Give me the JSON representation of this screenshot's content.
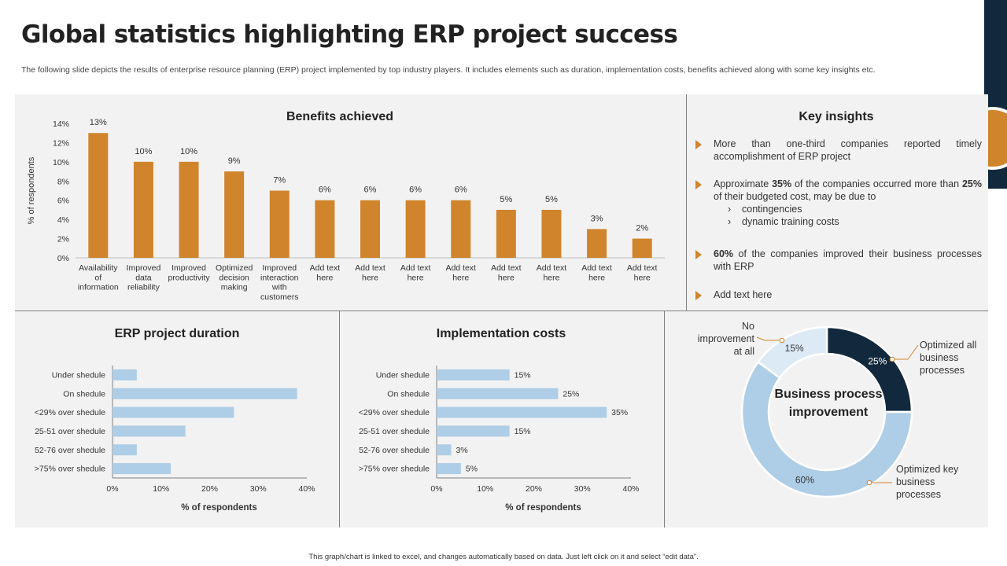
{
  "page": {
    "title": "Global statistics highlighting ERP project success",
    "subtitle": "The following slide depicts the results of enterprise resource planning (ERP) project implemented by top industry players. It includes elements such as duration, implementation costs, benefits achieved along with some key insights etc.",
    "footer": "This graph/chart is linked to excel, and changes automatically based on data. Just left click on it and select “edit data”."
  },
  "colors": {
    "orange": "#d0842b",
    "light_blue": "#aecde6",
    "navy": "#12293d",
    "pale_blue": "#dceaf6",
    "panel_bg": "#f2f2f2"
  },
  "insights": {
    "title": "Key insights",
    "items": [
      {
        "text": "More than one-third companies reported timely accomplishment of ERP project"
      },
      {
        "pre": "Approximate ",
        "b1": "35%",
        "mid": " of the companies occurred more than ",
        "b2": "25%",
        "post": " of their budgeted cost, may be due to",
        "subs": [
          "contingencies",
          "dynamic training costs"
        ],
        "bullet": "›"
      },
      {
        "b1": "60%",
        "post": " of the companies improved their business processes with ERP"
      },
      {
        "text": "Add text here"
      }
    ]
  },
  "chart_data": [
    {
      "type": "bar",
      "title": "Benefits achieved",
      "ylabel": "% of respondents",
      "ylim": [
        0,
        14
      ],
      "yticks": [
        "0%",
        "2%",
        "4%",
        "6%",
        "8%",
        "10%",
        "12%",
        "14%"
      ],
      "categories": [
        [
          "Availability",
          "of",
          "information"
        ],
        [
          "Improved",
          "data",
          "reliability"
        ],
        [
          "Improved",
          "productivity"
        ],
        [
          "Optimized",
          "decision",
          "making"
        ],
        [
          "Improved",
          "interaction",
          "with",
          "customers"
        ],
        [
          "Add text",
          "here"
        ],
        [
          "Add text",
          "here"
        ],
        [
          "Add text",
          "here"
        ],
        [
          "Add text",
          "here"
        ],
        [
          "Add text",
          "here"
        ],
        [
          "Add text",
          "here"
        ],
        [
          "Add text",
          "here"
        ],
        [
          "Add text",
          "here"
        ]
      ],
      "values": [
        13,
        10,
        10,
        9,
        7,
        6,
        6,
        6,
        6,
        5,
        5,
        3,
        2
      ],
      "labels": [
        "13%",
        "10%",
        "10%",
        "9%",
        "7%",
        "6%",
        "6%",
        "6%",
        "6%",
        "5%",
        "5%",
        "3%",
        "2%"
      ]
    },
    {
      "type": "bar",
      "orientation": "horizontal",
      "title": "ERP project duration",
      "xlabel": "% of respondents",
      "xlim": [
        0,
        40
      ],
      "xticks": [
        "0%",
        "10%",
        "20%",
        "30%",
        "40%"
      ],
      "categories": [
        "Under shedule",
        "On shedule",
        "<29% over shedule",
        "25-51 over shedule",
        "52-76 over shedule",
        ">75% over shedule"
      ],
      "values": [
        5,
        38,
        25,
        15,
        5,
        12
      ]
    },
    {
      "type": "bar",
      "orientation": "horizontal",
      "title": "Implementation costs",
      "xlabel": "% of respondents",
      "xlim": [
        0,
        40
      ],
      "xticks": [
        "0%",
        "10%",
        "20%",
        "30%",
        "40%"
      ],
      "categories": [
        "Under shedule",
        "On shedule",
        "<29% over shedule",
        "25-51 over shedule",
        "52-76 over shedule",
        ">75% over shedule"
      ],
      "values": [
        15,
        25,
        35,
        15,
        3,
        5
      ],
      "labels": [
        "15%",
        "25%",
        "35%",
        "15%",
        "3%",
        "5%"
      ]
    },
    {
      "type": "pie",
      "title": "Business process improvement",
      "slices": [
        {
          "name": "Optimized all business processes",
          "value": 25,
          "label": "25%"
        },
        {
          "name": "Optimized key business processes",
          "value": 60,
          "label": "60%"
        },
        {
          "name": "No improvement at all",
          "value": 15,
          "label": "15%"
        }
      ]
    }
  ]
}
